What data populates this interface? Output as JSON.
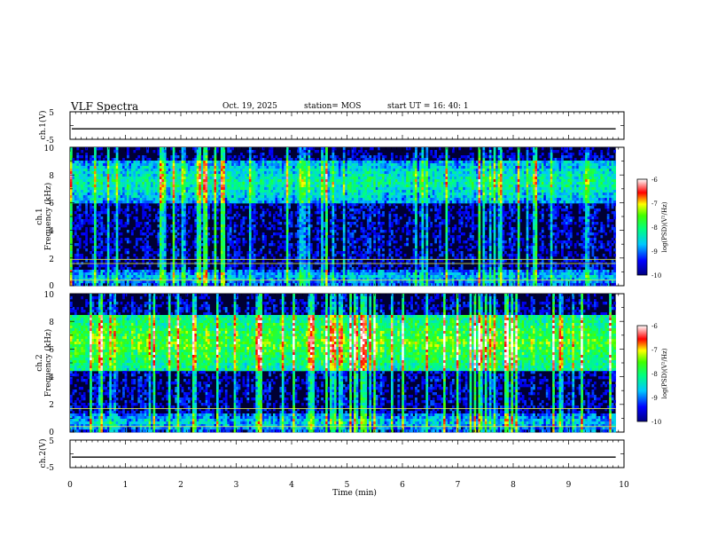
{
  "header": {
    "title": "VLF Spectra",
    "date": "Oct. 19, 2025",
    "station": "station= MOS",
    "start": "start  UT =   16: 40: 1"
  },
  "chart_data": [
    {
      "type": "line",
      "name": "ch1-waveform",
      "ylabel": "ch.1(V)",
      "ylim": [
        -5,
        5
      ],
      "yticks": [
        "5",
        "-5"
      ],
      "xlim": [
        0,
        10
      ],
      "level": -1.2
    },
    {
      "type": "heatmap",
      "name": "ch1-spectrogram",
      "ylabel_channel": "ch.1",
      "ylabel": "Frequency (kHz)",
      "ylim": [
        0,
        10
      ],
      "yticks": [
        "0",
        "2",
        "4",
        "6",
        "8",
        "10"
      ],
      "xlim": [
        0,
        9.85
      ],
      "colorbar": {
        "label": "log(PSD)(V²/Hz)",
        "range": [
          -10,
          -6
        ],
        "ticks": [
          "-6",
          "-7",
          "-8",
          "-9",
          "-10"
        ]
      },
      "bands": [
        {
          "from": 6,
          "to": 9,
          "level": -8.2
        },
        {
          "from": 0,
          "to": 1.2,
          "level": -8.6
        }
      ],
      "lines_khz": [
        0.4,
        1.6,
        1.9
      ]
    },
    {
      "type": "heatmap",
      "name": "ch2-spectrogram",
      "ylabel_channel": "ch.2",
      "ylabel": "Frequency (kHz)",
      "ylim": [
        0,
        10
      ],
      "yticks": [
        "0",
        "2",
        "4",
        "6",
        "8",
        "10"
      ],
      "xlim": [
        0,
        9.85
      ],
      "colorbar": {
        "label": "log(PSD)(V²/Hz)",
        "range": [
          -10,
          -6
        ],
        "ticks": [
          "-6",
          "-7",
          "-8",
          "-9",
          "-10"
        ]
      },
      "bands": [
        {
          "from": 4.5,
          "to": 8.5,
          "level": -7.6
        },
        {
          "from": 0,
          "to": 1.4,
          "level": -8.6
        }
      ],
      "lines_khz": [
        0.4,
        1.7
      ]
    },
    {
      "type": "line",
      "name": "ch2-waveform",
      "ylabel": "ch.2(V)",
      "ylim": [
        -5,
        5
      ],
      "yticks": [
        "5",
        "-5"
      ],
      "xlim": [
        0,
        10
      ],
      "level": -1.2
    }
  ],
  "xaxis": {
    "label": "Time  (min)",
    "range": [
      0,
      10
    ],
    "ticks": [
      "0",
      "1",
      "2",
      "3",
      "4",
      "5",
      "6",
      "7",
      "8",
      "9",
      "10"
    ]
  }
}
